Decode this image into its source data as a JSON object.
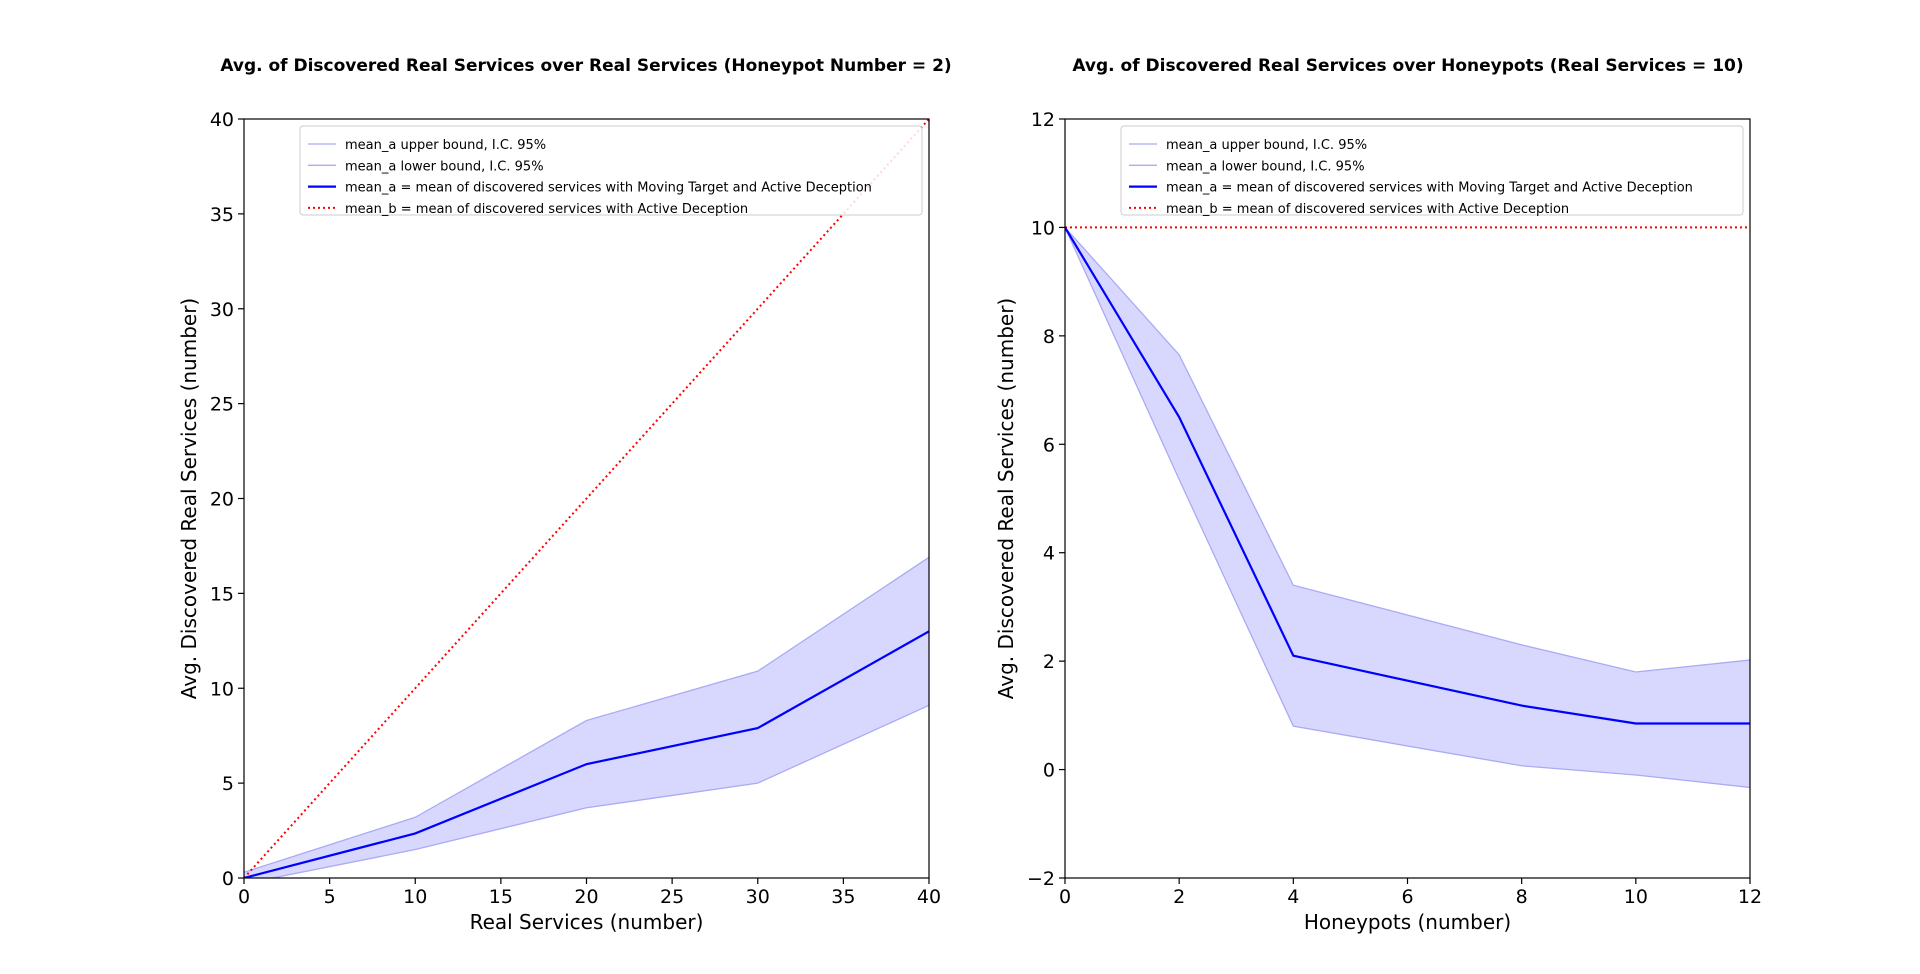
{
  "figure": {
    "background": "#ffffff"
  },
  "colors": {
    "mean_a": "#0000ff",
    "band": "#d8d8ff",
    "band_edge": "#aaaaf5",
    "mean_b": "#ff0000"
  },
  "chart_data": [
    {
      "type": "line",
      "title": "Avg. of Discovered Real Services over Real Services (Honeypot Number = 2)",
      "xlabel": "Real Services (number)",
      "ylabel": "Avg. Discovered Real Services (number)",
      "xlim": [
        0,
        40
      ],
      "ylim": [
        0,
        40
      ],
      "xticks": [
        0,
        5,
        10,
        15,
        20,
        25,
        30,
        35,
        40
      ],
      "yticks": [
        0,
        5,
        10,
        15,
        20,
        25,
        30,
        35,
        40
      ],
      "grid": false,
      "legend_position": "top-right",
      "x": [
        0,
        10,
        20,
        30,
        40
      ],
      "series": [
        {
          "name": "mean_a upper bound, I.C. 95%",
          "role": "upper",
          "values": [
            0.3,
            3.2,
            8.3,
            10.9,
            16.9
          ]
        },
        {
          "name": "mean_a lower bound, I.C. 95%",
          "role": "lower",
          "values": [
            -0.3,
            1.5,
            3.7,
            5.0,
            9.1
          ]
        },
        {
          "name": "mean_a = mean of discovered services with Moving Target and Active Deception",
          "role": "mean_a",
          "values": [
            0,
            2.35,
            6.0,
            7.9,
            13.0
          ]
        },
        {
          "name": "mean_b = mean of discovered services with Active Deception",
          "role": "mean_b",
          "values": [
            0,
            10,
            20,
            30,
            40
          ]
        }
      ]
    },
    {
      "type": "line",
      "title": "Avg. of Discovered Real Services over Honeypots (Real Services = 10)",
      "xlabel": "Honeypots (number)",
      "ylabel": "Avg. Discovered Real Services (number)",
      "xlim": [
        0,
        12
      ],
      "ylim": [
        -2,
        12
      ],
      "xticks": [
        0,
        2,
        4,
        6,
        8,
        10,
        12
      ],
      "yticks": [
        -2,
        0,
        2,
        4,
        6,
        8,
        10,
        12
      ],
      "grid": false,
      "legend_position": "top-right",
      "x": [
        0,
        2,
        4,
        8,
        10,
        12
      ],
      "series": [
        {
          "name": "mean_a upper bound, I.C. 95%",
          "role": "upper",
          "values": [
            10.0,
            7.65,
            3.4,
            2.3,
            1.8,
            2.02
          ]
        },
        {
          "name": "mean_a lower bound, I.C. 95%",
          "role": "lower",
          "values": [
            10.0,
            5.35,
            0.8,
            0.07,
            -0.1,
            -0.33
          ]
        },
        {
          "name": "mean_a = mean of discovered services with Moving Target and Active Deception",
          "role": "mean_a",
          "values": [
            10.0,
            6.5,
            2.1,
            1.18,
            0.85,
            0.85
          ]
        },
        {
          "name": "mean_b = mean of discovered services with Active Deception",
          "role": "mean_b",
          "values": [
            10,
            10,
            10,
            10,
            10,
            10
          ]
        }
      ]
    }
  ]
}
